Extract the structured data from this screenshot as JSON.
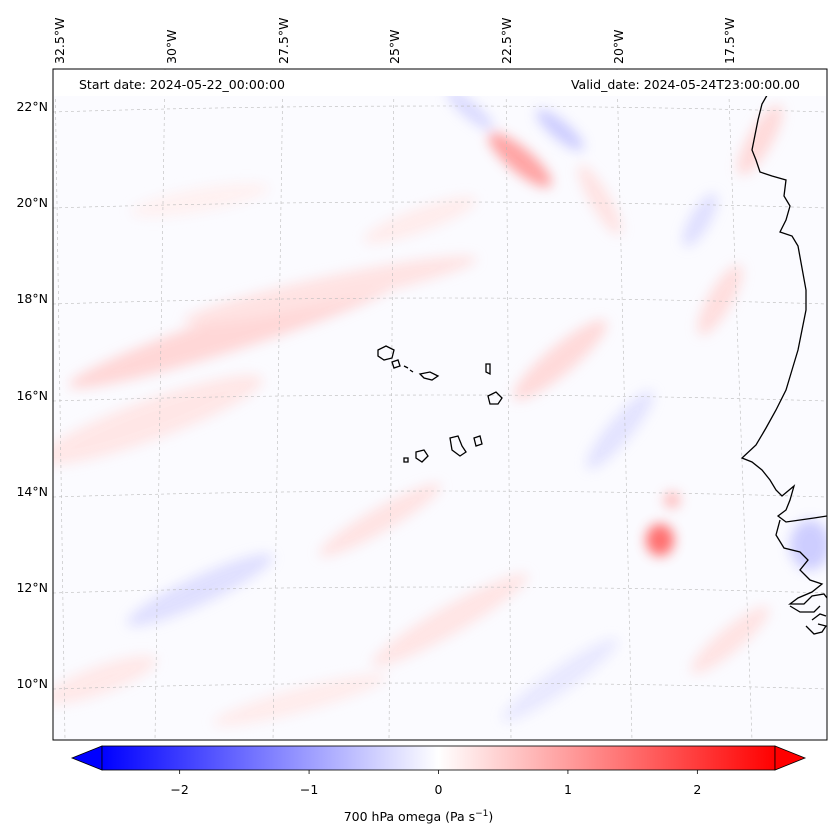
{
  "map": {
    "start_date": "Start date: 2024-05-22_00:00:00",
    "valid_date": "Valid_date: 2024-05-24T23:00:00.00",
    "lon_labels": [
      "32.5°W",
      "30°W",
      "27.5°W",
      "25°W",
      "22.5°W",
      "20°W",
      "17.5°W"
    ],
    "lat_labels": [
      "22°N",
      "20°N",
      "18°N",
      "16°N",
      "14°N",
      "12°N",
      "10°N"
    ],
    "coastline_color": "#000000",
    "gridline_color": "#bbbbbb"
  },
  "colorbar": {
    "title": "700 hPa omega (Pa s",
    "title_sup": "−1",
    "title_close": ")",
    "ticks": [
      "−2",
      "−1",
      "0",
      "1",
      "2"
    ],
    "tick_values": [
      -2,
      -1,
      0,
      1,
      2
    ],
    "vmin": -2.6,
    "vmax": 2.6,
    "low_color": "#0000ff",
    "mid_color": "#ffffff",
    "high_color": "#ff0000"
  }
}
